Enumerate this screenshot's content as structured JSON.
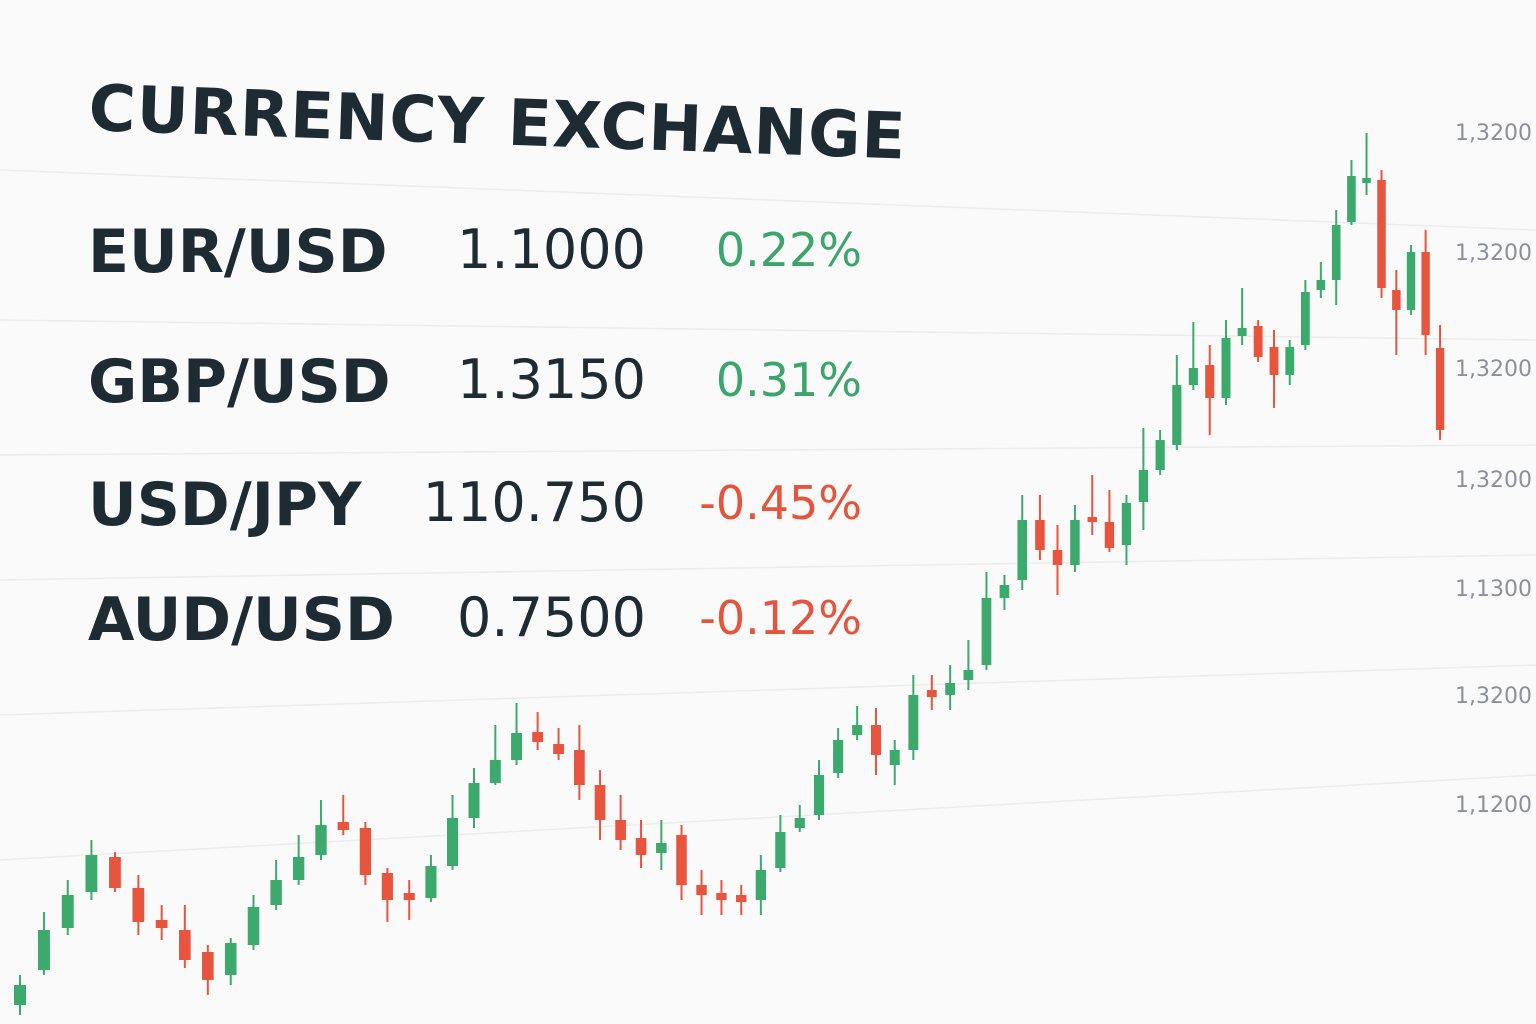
{
  "header": {
    "title": "CURRENCY EXCHANGE"
  },
  "table": {
    "rows": [
      [
        "EUR/USD",
        "1.1000",
        "0.22%"
      ],
      [
        "GBP/USD",
        "1.3150",
        "0.31%"
      ],
      [
        "USD/JPY",
        "110.750",
        "-0.45%"
      ],
      [
        "AUD/USD",
        "0.7500",
        "-0.12%"
      ]
    ],
    "up_color": "#3ba56b",
    "down_color": "#e5543d"
  },
  "chart_data": {
    "type": "candlestick",
    "y_axis_labels": [
      "1,3200",
      "1,3200",
      "1,3200",
      "1,3200",
      "1,1300",
      "1,3200",
      "1,1200"
    ],
    "up_color": "#3daa6d",
    "down_color": "#e8553f",
    "open": [
      19,
      54,
      96,
      132,
      167,
      136,
      104,
      94,
      72,
      49,
      79,
      119,
      144,
      169,
      202,
      196,
      151,
      131,
      126,
      158,
      206,
      241,
      264,
      292,
      280,
      274,
      239,
      204,
      186,
      171,
      189,
      139,
      131,
      129,
      124,
      156,
      196,
      209,
      251,
      289,
      299,
      259,
      274,
      334,
      329,
      344,
      359,
      426,
      444,
      504,
      474,
      459,
      507,
      502,
      479,
      522,
      554,
      579,
      639,
      659,
      626,
      688,
      698,
      677,
      649,
      679,
      734,
      744,
      802,
      841,
      844,
      734,
      714,
      772,
      676
    ],
    "high": [
      49,
      112,
      144,
      184,
      172,
      149,
      119,
      119,
      79,
      86,
      129,
      164,
      189,
      224,
      229,
      202,
      156,
      144,
      169,
      229,
      256,
      299,
      321,
      312,
      296,
      299,
      254,
      229,
      204,
      204,
      199,
      154,
      144,
      139,
      169,
      209,
      219,
      264,
      296,
      318,
      316,
      284,
      349,
      349,
      359,
      384,
      452,
      449,
      529,
      529,
      499,
      519,
      549,
      534,
      529,
      596,
      594,
      669,
      702,
      679,
      704,
      736,
      704,
      694,
      684,
      744,
      762,
      814,
      864,
      891,
      854,
      754,
      779,
      794,
      699
    ],
    "low": [
      9,
      49,
      89,
      124,
      132,
      89,
      84,
      56,
      29,
      39,
      74,
      114,
      139,
      164,
      189,
      139,
      102,
      104,
      122,
      154,
      196,
      239,
      259,
      274,
      264,
      224,
      184,
      174,
      156,
      154,
      124,
      109,
      109,
      109,
      109,
      152,
      192,
      204,
      246,
      284,
      249,
      239,
      264,
      314,
      314,
      334,
      354,
      414,
      434,
      464,
      429,
      452,
      489,
      472,
      459,
      494,
      549,
      574,
      634,
      589,
      619,
      679,
      662,
      616,
      639,
      674,
      726,
      719,
      799,
      829,
      726,
      669,
      709,
      669,
      584
    ],
    "close": [
      39,
      94,
      129,
      169,
      136,
      102,
      96,
      64,
      44,
      81,
      117,
      144,
      167,
      199,
      194,
      149,
      124,
      124,
      158,
      206,
      241,
      264,
      291,
      282,
      270,
      239,
      204,
      184,
      169,
      181,
      139,
      129,
      124,
      122,
      154,
      192,
      206,
      249,
      284,
      299,
      269,
      274,
      329,
      327,
      341,
      354,
      426,
      439,
      504,
      474,
      459,
      504,
      502,
      476,
      521,
      554,
      584,
      639,
      656,
      626,
      686,
      696,
      667,
      649,
      677,
      732,
      744,
      799,
      848,
      846,
      736,
      714,
      772,
      689,
      594
    ]
  }
}
